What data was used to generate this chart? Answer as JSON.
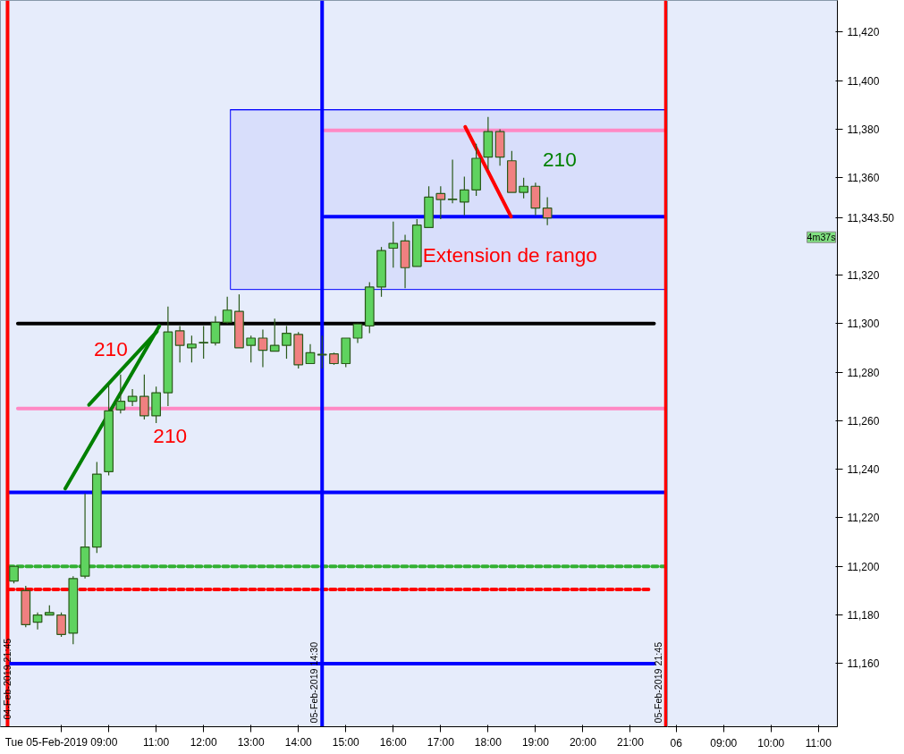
{
  "chart_data": [
    {
      "type": "candlestick",
      "x": [
        "2019-02-05T08:00",
        "2019-02-05T08:15",
        "2019-02-05T08:30",
        "2019-02-05T08:45",
        "2019-02-05T09:00",
        "2019-02-05T09:15",
        "2019-02-05T09:30",
        "2019-02-05T09:45",
        "2019-02-05T10:00",
        "2019-02-05T10:15",
        "2019-02-05T10:30",
        "2019-02-05T10:45",
        "2019-02-05T11:00",
        "2019-02-05T11:15",
        "2019-02-05T11:30",
        "2019-02-05T11:45",
        "2019-02-05T12:00",
        "2019-02-05T12:15",
        "2019-02-05T12:30",
        "2019-02-05T12:45",
        "2019-02-05T13:00",
        "2019-02-05T13:15",
        "2019-02-05T13:30",
        "2019-02-05T13:45",
        "2019-02-05T14:00",
        "2019-02-05T14:15",
        "2019-02-05T14:30",
        "2019-02-05T14:45",
        "2019-02-05T15:00",
        "2019-02-05T15:15",
        "2019-02-05T15:30",
        "2019-02-05T15:45",
        "2019-02-05T16:00",
        "2019-02-05T16:15",
        "2019-02-05T16:30",
        "2019-02-05T16:45",
        "2019-02-05T17:00",
        "2019-02-05T17:15",
        "2019-02-05T17:30",
        "2019-02-05T17:45",
        "2019-02-05T18:00",
        "2019-02-05T18:15",
        "2019-02-05T18:30",
        "2019-02-05T18:45",
        "2019-02-05T19:00",
        "2019-02-05T19:15"
      ],
      "ohlc": [
        [
          11194,
          11200,
          11193,
          11200
        ],
        [
          11190,
          11192,
          11175,
          11176
        ],
        [
          11177,
          11181,
          11174,
          11180
        ],
        [
          11180,
          11184,
          11180,
          11181
        ],
        [
          11180,
          11181,
          11171,
          11172
        ],
        [
          11172.5,
          11196,
          11168,
          11195
        ],
        [
          11196,
          11230,
          11195,
          11208
        ],
        [
          11208,
          11243,
          11205.5,
          11238
        ],
        [
          11239,
          11275,
          11237.5,
          11264
        ],
        [
          11264.5,
          11279,
          11263,
          11268
        ],
        [
          11268,
          11273,
          11266,
          11270
        ],
        [
          11270,
          11279,
          11260.5,
          11262
        ],
        [
          11262,
          11274,
          11259,
          11271.5
        ],
        [
          11271.5,
          11307,
          11266,
          11296.5
        ],
        [
          11297,
          11299,
          11284,
          11291
        ],
        [
          11290,
          11295,
          11284,
          11291.5
        ],
        [
          11292,
          11299,
          11285.5,
          11292.2
        ],
        [
          11292,
          11303,
          11291,
          11300.5
        ],
        [
          11300.5,
          11311,
          11300,
          11305.5
        ],
        [
          11305,
          11312,
          11290,
          11290
        ],
        [
          11291,
          11295,
          11284,
          11294
        ],
        [
          11294,
          11297.5,
          11282,
          11289
        ],
        [
          11288.6,
          11302,
          11288.5,
          11291
        ],
        [
          11291,
          11299,
          11285.5,
          11296
        ],
        [
          11295.5,
          11296.5,
          11281.5,
          11283
        ],
        [
          11283.5,
          11291.5,
          11283.5,
          11288
        ],
        [
          11287,
          11295,
          11281.5,
          11287.3
        ],
        [
          11287.5,
          11288,
          11283,
          11283.5
        ],
        [
          11283.5,
          11294,
          11282,
          11294
        ],
        [
          11294,
          11300,
          11292,
          11299.8
        ],
        [
          11299,
          11317,
          11296,
          11315
        ],
        [
          11315,
          11331.5,
          11311,
          11330
        ],
        [
          11331,
          11342,
          11323,
          11333
        ],
        [
          11334,
          11336.5,
          11314.5,
          11323
        ],
        [
          11323.5,
          11343,
          11323.5,
          11340.5
        ],
        [
          11339.5,
          11356.5,
          11339.5,
          11352
        ],
        [
          11353.5,
          11356.5,
          11343,
          11351
        ],
        [
          11351,
          11367.5,
          11349.5,
          11351.2
        ],
        [
          11350,
          11360.5,
          11344.5,
          11355
        ],
        [
          11355,
          11374,
          11352.5,
          11368
        ],
        [
          11368.5,
          11385,
          11363.5,
          11379
        ],
        [
          11379,
          11380,
          11365,
          11368.5
        ],
        [
          11367,
          11371,
          11354,
          11354
        ],
        [
          11354,
          11360,
          11351.5,
          11356.5
        ],
        [
          11356.5,
          11358,
          11344.5,
          11347.5
        ],
        [
          11347.5,
          11352,
          11340.5,
          11343.5
        ]
      ],
      "colors": [
        "#5fd35f",
        "#f08080",
        "#5fd35f",
        "#5fd35f",
        "#f08080",
        "#5fd35f",
        "#5fd35f",
        "#5fd35f",
        "#5fd35f",
        "#5fd35f",
        "#5fd35f",
        "#f08080",
        "#5fd35f",
        "#5fd35f",
        "#f08080",
        "#5fd35f",
        "#5fd35f",
        "#5fd35f",
        "#5fd35f",
        "#f08080",
        "#5fd35f",
        "#f08080",
        "#5fd35f",
        "#5fd35f",
        "#f08080",
        "#5fd35f",
        "#5fd35f",
        "#f08080",
        "#5fd35f",
        "#5fd35f",
        "#5fd35f",
        "#5fd35f",
        "#5fd35f",
        "#f08080",
        "#5fd35f",
        "#5fd35f",
        "#f08080",
        "#5fd35f",
        "#5fd35f",
        "#5fd35f",
        "#5fd35f",
        "#f08080",
        "#f08080",
        "#5fd35f",
        "#f08080",
        "#f08080"
      ],
      "series": [
        {
          "type": "line",
          "x": [
            "2019-02-05T12:34",
            "2019-02-05T21:44"
          ],
          "values": [
            11388,
            11388
          ],
          "lower": [
            11314,
            11314
          ],
          "upper": [
            11388,
            11388
          ],
          "color": "#0000ff"
        },
        {
          "type": "line",
          "x": [
            "2019-02-05T08:05",
            "2019-02-05T21:30"
          ],
          "values": [
            11300,
            11300
          ],
          "color": "#000000"
        },
        {
          "type": "line",
          "x": [
            "2019-02-05T08:05",
            "2019-02-05T21:44"
          ],
          "values": [
            11265,
            11265
          ],
          "color": "#ff88c4"
        },
        {
          "type": "line",
          "x": [
            "2019-02-05T07:53",
            "2019-02-05T21:44"
          ],
          "values": [
            11230.5,
            11230.5
          ],
          "color": "#0000ff"
        },
        {
          "type": "line",
          "x": [
            "2019-02-05T07:53",
            "2019-02-05T21:44"
          ],
          "values": [
            11200,
            11200
          ],
          "color": "#33b033",
          "line_style": "dashed"
        },
        {
          "type": "line",
          "x": [
            "2019-02-05T07:53",
            "2019-02-05T21:25"
          ],
          "values": [
            11190.5,
            11190.5
          ],
          "color": "#ff0000",
          "line_style": "dashed"
        },
        {
          "type": "line",
          "x": [
            "2019-02-05T07:53",
            "2019-02-05T21:30"
          ],
          "values": [
            11160,
            11160
          ],
          "color": "#0000ff"
        },
        {
          "type": "line",
          "x": [
            "2019-02-05T14:33",
            "2019-02-05T21:44"
          ],
          "values": [
            11344,
            11344
          ],
          "color": "#0000ff"
        },
        {
          "type": "line",
          "x": [
            "2019-02-05T14:33",
            "2019-02-05T21:44"
          ],
          "values": [
            11379.5,
            11379.5
          ],
          "color": "#ff88c4"
        },
        {
          "type": "line",
          "x": [
            "2019-02-05T09:05",
            "2019-02-05T11:04"
          ],
          "values": [
            11232,
            11299
          ],
          "color": "#008000"
        },
        {
          "type": "line",
          "x": [
            "2019-02-05T09:35",
            "2019-02-05T11:01"
          ],
          "values": [
            11266.5,
            11296.7
          ],
          "color": "#008000"
        },
        {
          "type": "line",
          "x": [
            "2019-02-05T17:31",
            "2019-02-05T18:29"
          ],
          "values": [
            11381,
            11344
          ],
          "color": "#ff0000"
        }
      ],
      "ref_lines": [
        {
          "axis": "x",
          "value": "2019-02-05T07:52",
          "color": "#ff0000"
        },
        {
          "axis": "x",
          "value": "2019-02-05T14:30",
          "label": "05-Feb-2019 14:30",
          "color": "#0000ff"
        },
        {
          "axis": "x",
          "value": "2019-02-05T21:45",
          "label": "05-Feb-2019 21:45",
          "color": "#ff0000"
        }
      ],
      "annotations": [
        "210",
        "210",
        "210",
        "Extension de rango",
        "04-Feb-2019 21:45"
      ],
      "xlim": [
        "2019-02-05T07:43",
        "2019-02-05T21:47"
      ],
      "xticks": [
        {
          "value": "2019-02-05T09:00",
          "label": "Tue 05-Feb-2019 09:00"
        },
        {
          "value": "2019-02-05T10:00",
          "label": null
        },
        {
          "value": "2019-02-05T11:00",
          "label": "11:00"
        },
        {
          "value": "2019-02-05T12:00",
          "label": "12:00"
        },
        {
          "value": "2019-02-05T13:00",
          "label": "13:00"
        },
        {
          "value": "2019-02-05T14:00",
          "label": "14:00"
        },
        {
          "value": "2019-02-05T15:00",
          "label": "15:00"
        },
        {
          "value": "2019-02-05T16:00",
          "label": "16:00"
        },
        {
          "value": "2019-02-05T17:00",
          "label": "17:00"
        },
        {
          "value": "2019-02-05T18:00",
          "label": "18:00"
        },
        {
          "value": "2019-02-05T19:00",
          "label": "19:00"
        },
        {
          "value": "2019-02-05T20:00",
          "label": "20:00"
        },
        {
          "value": "2019-02-05T21:00",
          "label": "21:00"
        }
      ],
      "ylim": [
        11134,
        11433
      ],
      "tick_labels": "x"
    },
    {
      "type": "candlestick",
      "annotations": [
        "4m37s"
      ],
      "xlim": [
        "2019-02-06T07:49",
        "2019-02-06T11:24"
      ],
      "xticks": [
        {
          "value": "2019-02-06T08:00",
          "label": "06"
        },
        {
          "value": "2019-02-06T09:00",
          "label": "09:00"
        },
        {
          "value": "2019-02-06T10:00",
          "label": "10:00"
        },
        {
          "value": "2019-02-06T11:00",
          "label": "11:00"
        }
      ],
      "ylim": [
        11134,
        11433
      ],
      "yticks": [
        {
          "value": 11160,
          "label": "11,160"
        },
        {
          "value": 11180,
          "label": "11,180"
        },
        {
          "value": 11200,
          "label": "11,200"
        },
        {
          "value": 11220,
          "label": "11,220"
        },
        {
          "value": 11240,
          "label": "11,240"
        },
        {
          "value": 11260,
          "label": "11,260"
        },
        {
          "value": 11280,
          "label": "11,280"
        },
        {
          "value": 11300,
          "label": "11,300"
        },
        {
          "value": 11320,
          "label": "11,320"
        },
        {
          "value": 11343.5,
          "label": "11,343.50"
        },
        {
          "value": 11360,
          "label": "11,360"
        },
        {
          "value": 11380,
          "label": "11,380"
        },
        {
          "value": 11400,
          "label": "11,400"
        },
        {
          "value": 11420,
          "label": "11,420"
        }
      ]
    }
  ]
}
